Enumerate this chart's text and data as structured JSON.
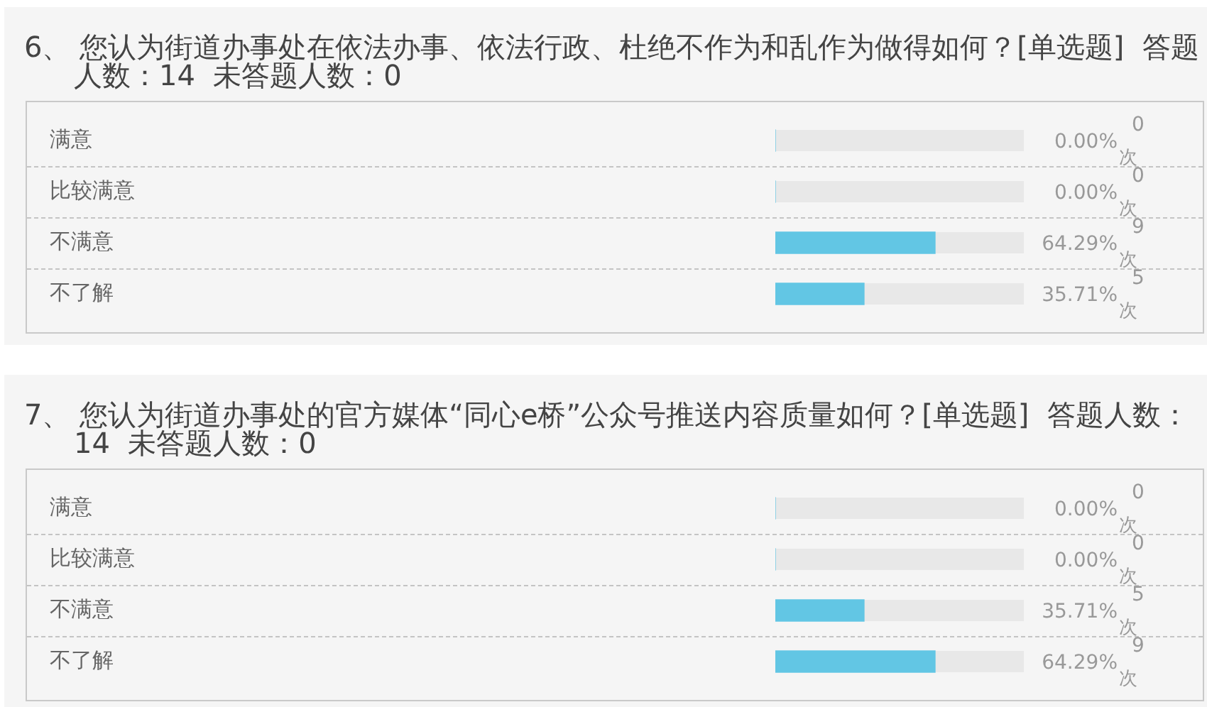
{
  "chart_data": [
    {
      "type": "bar",
      "orientation": "horizontal",
      "title": "6、 您认为街道办事处在依法办事、依法行政、杜绝不作为和乱作为做得如何？[单选题]  答题人数：14  未答题人数：0",
      "categories": [
        "满意",
        "比较满意",
        "不满意",
        "不了解"
      ],
      "values": [
        0,
        0,
        64.29,
        35.71
      ],
      "color": "#62c6e4",
      "value_labels": [
        "0.00%$^{0}$$_{次}$",
        "0.00%$^{0}$$_{次}$",
        "64.29%$^{9}$$_{次}$",
        "35.71%$^{5}$$_{次}$"
      ],
      "xlim": [
        0,
        100
      ],
      "tick_labels": "y",
      "grid": "y"
    },
    {
      "type": "bar",
      "orientation": "horizontal",
      "title": "7、 您认为街道办事处的官方媒体“同心e桥”公众号推送内容质量如何？[单选题]  答题人数：14  未答题人数：0",
      "categories": [
        "满意",
        "比较满意",
        "不满意",
        "不了解"
      ],
      "values": [
        0,
        0,
        35.71,
        64.29
      ],
      "color": "#62c6e4",
      "value_labels": [
        "0.00%$^{0}$$_{次}$",
        "0.00%$^{0}$$_{次}$",
        "35.71%$^{5}$$_{次}$",
        "64.29%$^{9}$$_{次}$"
      ],
      "xlim": [
        0,
        100
      ],
      "tick_labels": "y",
      "grid": "y"
    }
  ]
}
